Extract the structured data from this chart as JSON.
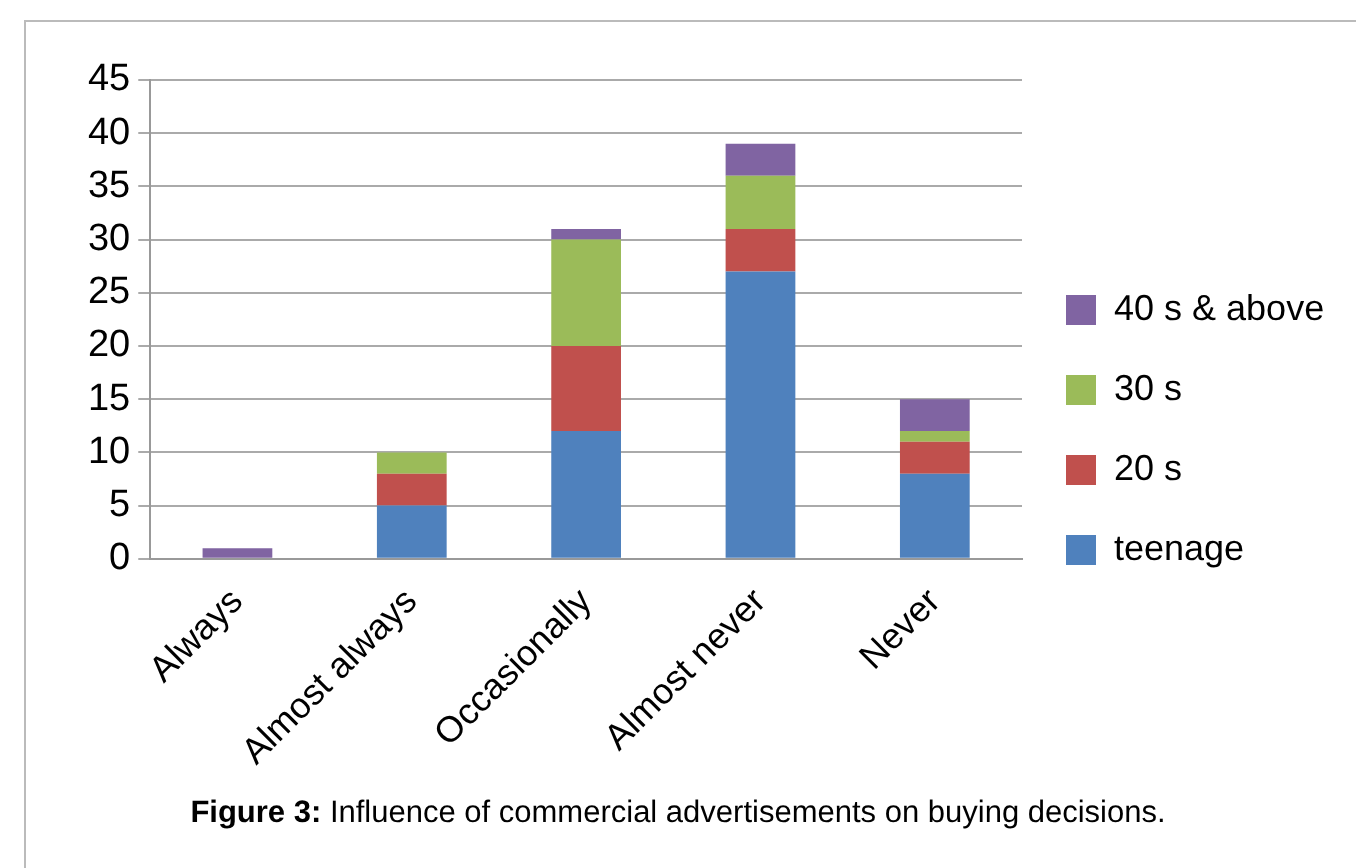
{
  "chart_data": {
    "type": "bar",
    "stacked": true,
    "categories": [
      "Always",
      "Almost always",
      "Occasionally",
      "Almost never",
      "Never"
    ],
    "series": [
      {
        "name": "teenage",
        "color": "#4f81bd",
        "values": [
          0,
          5,
          12,
          27,
          8
        ]
      },
      {
        "name": "20 s",
        "color": "#c0504d",
        "values": [
          0,
          3,
          8,
          4,
          3
        ]
      },
      {
        "name": "30 s",
        "color": "#9bbb59",
        "values": [
          0,
          2,
          10,
          5,
          1
        ]
      },
      {
        "name": "40 s & above",
        "color": "#8064a2",
        "values": [
          1,
          0,
          1,
          3,
          3
        ]
      }
    ],
    "ylim": [
      0,
      45
    ],
    "yticks": [
      0,
      5,
      10,
      15,
      20,
      25,
      30,
      35,
      40,
      45
    ],
    "grid": "y",
    "legend": "right",
    "annotations": [
      "Figure 3: Influence of commercial advertisements on buying decisions."
    ]
  }
}
